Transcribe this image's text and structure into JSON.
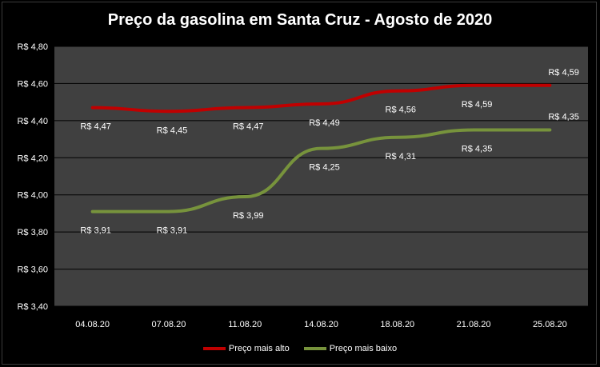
{
  "chart_data": {
    "type": "line",
    "title": "Preço da gasolina em Santa Cruz - Agosto de 2020",
    "categories": [
      "04.08.20",
      "07.08.20",
      "11.08.20",
      "14.08.20",
      "18.08.20",
      "21.08.20",
      "25.08.20"
    ],
    "ylim": [
      3.4,
      4.8
    ],
    "yticks": [
      "R$ 3,40",
      "R$ 3,60",
      "R$ 3,80",
      "R$ 4,00",
      "R$ 4,20",
      "R$ 4,40",
      "R$ 4,60",
      "R$ 4,80"
    ],
    "grid": true,
    "legend_position": "bottom",
    "series": [
      {
        "name": "Preço mais alto",
        "color": "#c00000",
        "values": [
          4.47,
          4.45,
          4.47,
          4.49,
          4.56,
          4.59,
          4.59
        ],
        "labels": [
          "R$ 4,47",
          "R$ 4,45",
          "R$ 4,47",
          "R$ 4,49",
          "R$ 4,56",
          "R$ 4,59",
          "R$ 4,59"
        ]
      },
      {
        "name": "Preço mais baixo",
        "color": "#77933c",
        "values": [
          3.91,
          3.91,
          3.99,
          4.25,
          4.31,
          4.35,
          4.35
        ],
        "labels": [
          "R$ 3,91",
          "R$ 3,91",
          "R$ 3,99",
          "R$ 4,25",
          "R$ 4,31",
          "R$ 4,35",
          "R$ 4,35"
        ]
      }
    ]
  }
}
